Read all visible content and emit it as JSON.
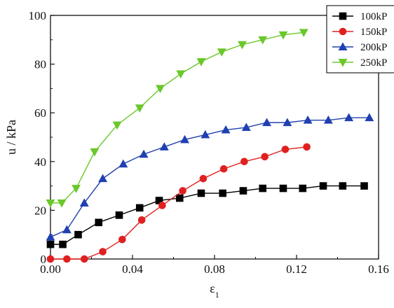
{
  "chart_data": {
    "type": "line",
    "title": "",
    "xlabel": "ε",
    "xlabel_subscript": "1",
    "ylabel": "u / kPa",
    "xlim": [
      0,
      0.16
    ],
    "ylim": [
      0,
      100
    ],
    "xticks": [
      0,
      0.04,
      0.08,
      0.12,
      0.16
    ],
    "xtick_labels": [
      "0.00",
      "0.04",
      "0.08",
      "0.12",
      "0.16"
    ],
    "yticks": [
      0,
      20,
      40,
      60,
      80,
      100
    ],
    "ytick_labels": [
      "0",
      "20",
      "40",
      "60",
      "80",
      "100"
    ],
    "grid": false,
    "legend_position": "top-right",
    "series": [
      {
        "name": "100kP",
        "color": "#000000",
        "marker": "square",
        "x": [
          0.0,
          0.006,
          0.0135,
          0.0235,
          0.0335,
          0.0435,
          0.053,
          0.063,
          0.0735,
          0.084,
          0.094,
          0.1035,
          0.1135,
          0.123,
          0.133,
          0.1425,
          0.153
        ],
        "y": [
          6,
          6,
          10,
          15,
          18,
          21,
          24,
          25,
          27,
          27,
          28,
          29,
          29,
          29,
          30,
          30,
          30
        ]
      },
      {
        "name": "150kP",
        "color": "#e02020",
        "marker": "circle",
        "x": [
          0.0,
          0.008,
          0.0165,
          0.0255,
          0.035,
          0.0445,
          0.0545,
          0.0645,
          0.0745,
          0.0845,
          0.0945,
          0.1045,
          0.1145,
          0.125
        ],
        "y": [
          0,
          0,
          0,
          3,
          8,
          16,
          22,
          28,
          33,
          37,
          40,
          42,
          45,
          46
        ]
      },
      {
        "name": "200kP",
        "color": "#2040b0",
        "marker": "triangle-up",
        "x": [
          0.0,
          0.008,
          0.0165,
          0.0255,
          0.0355,
          0.0455,
          0.0555,
          0.0655,
          0.0755,
          0.0855,
          0.0955,
          0.1055,
          0.1155,
          0.1255,
          0.1355,
          0.1455,
          0.1555
        ],
        "y": [
          9,
          12,
          23,
          33,
          39,
          43,
          46,
          49,
          51,
          53,
          54,
          56,
          56,
          57,
          57,
          58,
          58
        ]
      },
      {
        "name": "250kP",
        "color": "#6ac82a",
        "marker": "triangle-down",
        "x": [
          0.0,
          0.0055,
          0.0125,
          0.0215,
          0.0325,
          0.0435,
          0.0535,
          0.0635,
          0.0735,
          0.0835,
          0.0935,
          0.1035,
          0.1135,
          0.1235
        ],
        "y": [
          23,
          23,
          29,
          44,
          55,
          62,
          70,
          76,
          81,
          85,
          88,
          90,
          92,
          93
        ]
      }
    ]
  }
}
